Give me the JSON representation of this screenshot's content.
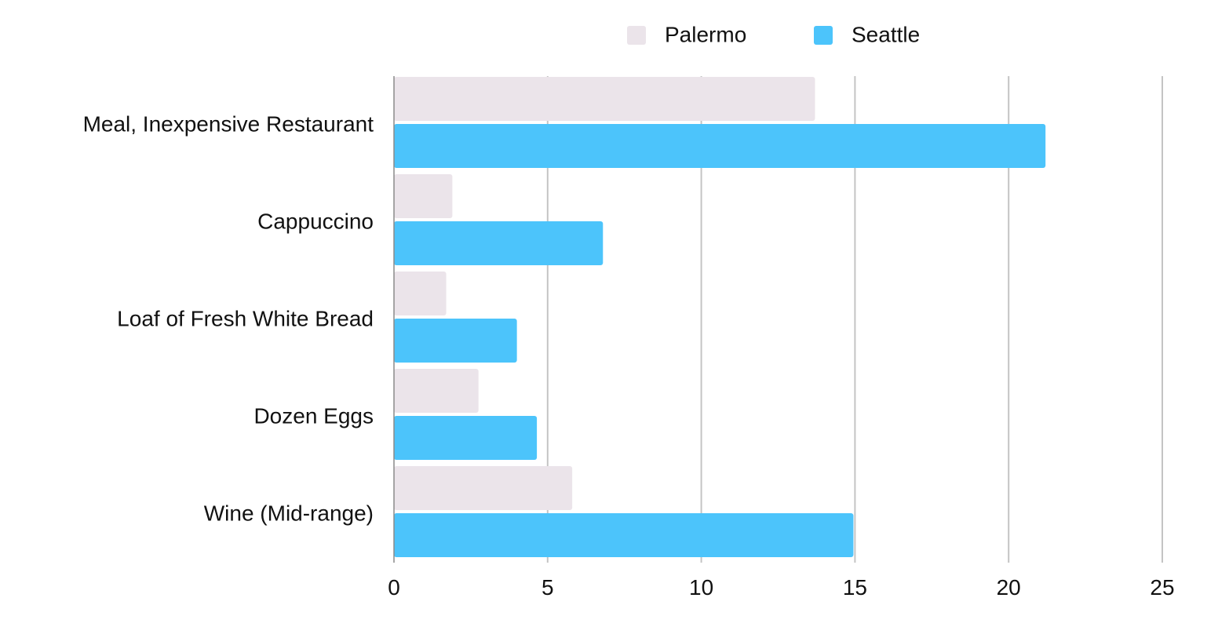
{
  "chart_data": {
    "type": "bar",
    "orientation": "horizontal",
    "categories": [
      "Meal, Inexpensive Restaurant",
      "Cappuccino",
      "Loaf of Fresh White Bread",
      "Dozen Eggs",
      "Wine (Mid-range)"
    ],
    "series": [
      {
        "name": "Palermo",
        "color": "#ebe4ea",
        "values": [
          13.7,
          1.9,
          1.7,
          2.75,
          5.8
        ]
      },
      {
        "name": "Seattle",
        "color": "#4cc4fb",
        "values": [
          21.2,
          6.8,
          4.0,
          4.65,
          14.95
        ]
      }
    ],
    "xlim": [
      0,
      25
    ],
    "xticks": [
      0,
      5,
      10,
      15,
      20,
      25
    ],
    "grid": true,
    "legend": "top-center",
    "title": "",
    "xlabel": "",
    "ylabel": ""
  }
}
